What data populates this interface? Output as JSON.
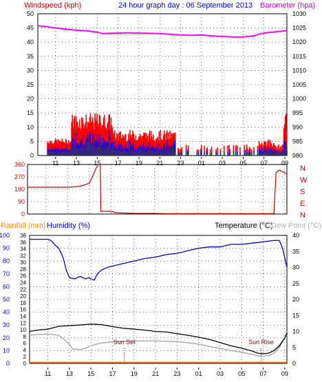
{
  "chart_data": [
    {
      "type": "line",
      "title": "24 hour graph day : 06 September 2013",
      "ylabel_left": "Windspeed (kph)",
      "ylabel_right": "Barometer (hpa)",
      "x_ticks": [
        "11",
        "13",
        "15",
        "17",
        "19",
        "21",
        "23",
        "01",
        "03",
        "05",
        "07",
        "09"
      ],
      "ylim_left": [
        0,
        50
      ],
      "yticks_left": [
        0,
        5,
        10,
        15,
        20,
        25,
        30,
        35,
        40,
        45,
        50
      ],
      "ylim_right": [
        980,
        1030
      ],
      "yticks_right": [
        980,
        985,
        990,
        995,
        1000,
        1005,
        1010,
        1015,
        1020,
        1025,
        1030
      ],
      "grid": true,
      "colors": {
        "gust": "#ff0000",
        "wind": "#0000ff",
        "wind_avg": "#008000",
        "barometer": "#ff00ff"
      },
      "series": [
        {
          "name": "Barometer (hpa)",
          "axis": "right",
          "color": "#ff00ff",
          "x": [
            9.3,
            10,
            11,
            12,
            13,
            14,
            15,
            15.5,
            16,
            17,
            18,
            19,
            20,
            21,
            22,
            23,
            24,
            25,
            26,
            27,
            28,
            29,
            30,
            30.5,
            31,
            32,
            33,
            33.2
          ],
          "values": [
            1025.8,
            1025.5,
            1025,
            1024.6,
            1024.2,
            1024.0,
            1023.5,
            1023.0,
            1023.1,
            1023.2,
            1023.3,
            1023.2,
            1023.1,
            1023.0,
            1022.8,
            1022.5,
            1022.4,
            1022.5,
            1022.2,
            1022.0,
            1021.8,
            1021.8,
            1022.2,
            1022.8,
            1023.2,
            1023.6,
            1024.0,
            1024.1
          ]
        }
      ]
    },
    {
      "type": "line",
      "ylabel_left": "",
      "ylim_left": [
        0,
        360
      ],
      "yticks_left": [
        0,
        90,
        180,
        270,
        360
      ],
      "right_labels": [
        "N",
        "W",
        "S",
        "E",
        "N"
      ],
      "x_ticks": [
        "11",
        "13",
        "15",
        "17",
        "19",
        "21",
        "23",
        "01",
        "03",
        "05",
        "07",
        "09"
      ],
      "grid": true,
      "series": [
        {
          "name": "Wind direction",
          "color": "#cc0000",
          "x": [
            9.3,
            10,
            11,
            12,
            13,
            14,
            14.5,
            15,
            15.3,
            15.6,
            15.8,
            16.0,
            16.05,
            16.3,
            17,
            17.5,
            18,
            19,
            20,
            21,
            22,
            23,
            24,
            25,
            26,
            27,
            28,
            29,
            30,
            31,
            31.8,
            32.0,
            32.2,
            32.5,
            33,
            33.2
          ],
          "values": [
            195,
            195,
            195,
            195,
            195,
            200,
            210,
            225,
            275,
            330,
            358,
            360,
            20,
            20,
            20,
            10,
            8,
            5,
            5,
            5,
            3,
            3,
            3,
            3,
            3,
            3,
            3,
            3,
            3,
            3,
            3,
            5,
            300,
            320,
            300,
            290
          ]
        }
      ]
    },
    {
      "type": "line",
      "ylabel_left_1": "Rainfall (mm)",
      "ylabel_left_2": "Humidity (%)",
      "ylabel_right_1": "Temperature (°C)",
      "ylabel_right_2": "Dew Point (°C)",
      "ylim_humidity": [
        0,
        100
      ],
      "yticks_humidity": [
        0,
        10,
        20,
        30,
        40,
        50,
        60,
        70,
        80,
        90,
        100
      ],
      "ylim_rain": [
        0,
        38
      ],
      "yticks_rain": [
        0,
        2,
        4,
        6,
        8,
        10,
        12,
        14,
        16,
        18,
        20,
        22,
        24,
        26,
        28,
        30,
        32,
        34,
        36,
        38
      ],
      "ylim_temp": [
        0,
        40
      ],
      "yticks_temp": [
        0,
        5,
        10,
        15,
        20,
        25,
        30,
        35,
        40
      ],
      "x_ticks": [
        "11",
        "13",
        "15",
        "17",
        "19",
        "21",
        "23",
        "01",
        "03",
        "05",
        "07",
        "09"
      ],
      "annotations": [
        {
          "text": "Sun Set",
          "x": 18.1
        },
        {
          "text": "Sun Rise",
          "x": 30.8
        }
      ],
      "grid": true,
      "series": [
        {
          "name": "Humidity (%)",
          "color": "#0000cc",
          "x": [
            9.3,
            10,
            11,
            11.3,
            11.6,
            12,
            12.3,
            12.5,
            12.7,
            13,
            13.5,
            14,
            14.5,
            14.8,
            15,
            15.3,
            15.6,
            16,
            16.5,
            17,
            18,
            19,
            20,
            21,
            22,
            23,
            23.5,
            24,
            25,
            26,
            27,
            28,
            29,
            30,
            31,
            32,
            32.5,
            32.8,
            33.2
          ],
          "values": [
            97,
            97,
            97,
            96,
            93,
            90,
            85,
            80,
            73,
            67,
            66,
            68,
            66,
            67,
            66,
            65,
            70,
            73,
            75,
            76,
            78,
            80,
            82,
            83,
            85,
            86,
            87,
            88,
            90,
            91,
            91,
            93,
            93,
            94,
            95,
            96,
            96,
            90,
            75
          ]
        },
        {
          "name": "Temperature (°C)",
          "color": "#000000",
          "x": [
            9.3,
            10,
            11,
            12,
            13,
            14,
            15,
            16,
            17,
            18,
            19,
            20,
            21,
            22,
            23,
            24,
            25,
            26,
            27,
            28,
            29,
            30,
            30.5,
            31,
            31.5,
            32,
            32.5,
            33,
            33.2
          ],
          "values": [
            10,
            10.4,
            10.7,
            11.6,
            11.8,
            12.0,
            12.3,
            12.1,
            11.5,
            11.0,
            10.7,
            10.4,
            10.0,
            9.8,
            9.3,
            8.8,
            8.2,
            7.5,
            6.5,
            5.5,
            4.8,
            3.8,
            3.2,
            3.0,
            3.2,
            4.0,
            5.5,
            8.0,
            9.5
          ]
        },
        {
          "name": "Dew Point (°C)",
          "color": "#a0a0a0",
          "x": [
            9.3,
            10,
            11,
            12,
            12.5,
            13,
            13.3,
            13.6,
            14,
            14.5,
            15,
            15.5,
            16,
            17,
            18,
            19,
            20,
            21,
            22,
            23,
            24,
            25,
            26,
            27,
            28,
            29,
            30,
            30.5,
            31,
            31.5,
            32,
            32.5,
            33,
            33.2
          ],
          "values": [
            8.8,
            9.0,
            9.2,
            8.8,
            7.5,
            6.0,
            4.4,
            4.5,
            4.3,
            4.8,
            5.5,
            6.0,
            6.4,
            6.7,
            6.9,
            7.0,
            7.0,
            7.0,
            6.9,
            6.8,
            6.5,
            6.0,
            5.3,
            4.7,
            4.0,
            3.5,
            2.8,
            2.4,
            2.3,
            2.4,
            3.3,
            5.0,
            8.0,
            8.8
          ]
        },
        {
          "name": "Rainfall (mm)",
          "color": "#ff8c00",
          "x": [
            9.3,
            33.2
          ],
          "values": [
            0.3,
            0.3
          ]
        }
      ]
    }
  ]
}
